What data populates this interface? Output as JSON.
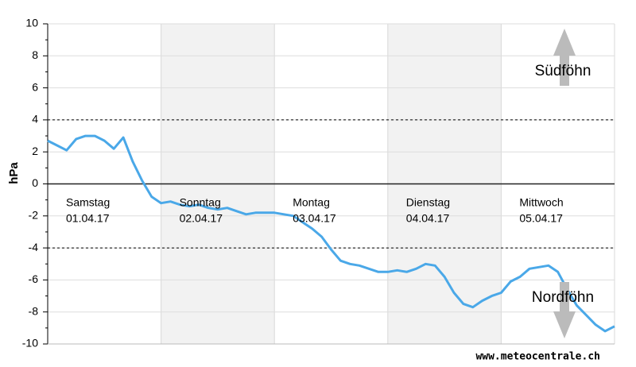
{
  "chart_data": {
    "type": "line",
    "ylabel": "hPa",
    "ylim": [
      -10,
      10
    ],
    "yticks": [
      -10,
      -8,
      -6,
      -4,
      -2,
      0,
      2,
      4,
      6,
      8,
      10
    ],
    "grid": true,
    "thresholds": [
      4,
      -4
    ],
    "days": [
      {
        "name": "Samstag",
        "date": "01.04.17"
      },
      {
        "name": "Sonntag",
        "date": "02.04.17"
      },
      {
        "name": "Montag",
        "date": "03.04.17"
      },
      {
        "name": "Dienstag",
        "date": "04.04.17"
      },
      {
        "name": "Mittwoch",
        "date": "05.04.17"
      }
    ],
    "color": "#4aa8e8",
    "values": [
      2.7,
      2.4,
      2.1,
      2.8,
      3.0,
      3.0,
      2.7,
      2.2,
      2.9,
      1.4,
      0.2,
      -0.8,
      -1.2,
      -1.1,
      -1.3,
      -1.4,
      -1.3,
      -1.5,
      -1.6,
      -1.5,
      -1.7,
      -1.9,
      -1.8,
      -1.8,
      -1.8,
      -1.9,
      -2.0,
      -2.4,
      -2.8,
      -3.3,
      -4.1,
      -4.8,
      -5.0,
      -5.1,
      -5.3,
      -5.5,
      -5.5,
      -5.4,
      -5.5,
      -5.3,
      -5.0,
      -5.1,
      -5.8,
      -6.8,
      -7.5,
      -7.7,
      -7.3,
      -7.0,
      -6.8,
      -6.1,
      -5.8,
      -5.3,
      -5.2,
      -5.1,
      -5.5,
      -6.6,
      -7.6,
      -8.2,
      -8.8,
      -9.2,
      -8.9
    ],
    "annotations": [
      "Südföhn",
      "Nordföhn"
    ],
    "source": "www.meteocentrale.ch"
  }
}
